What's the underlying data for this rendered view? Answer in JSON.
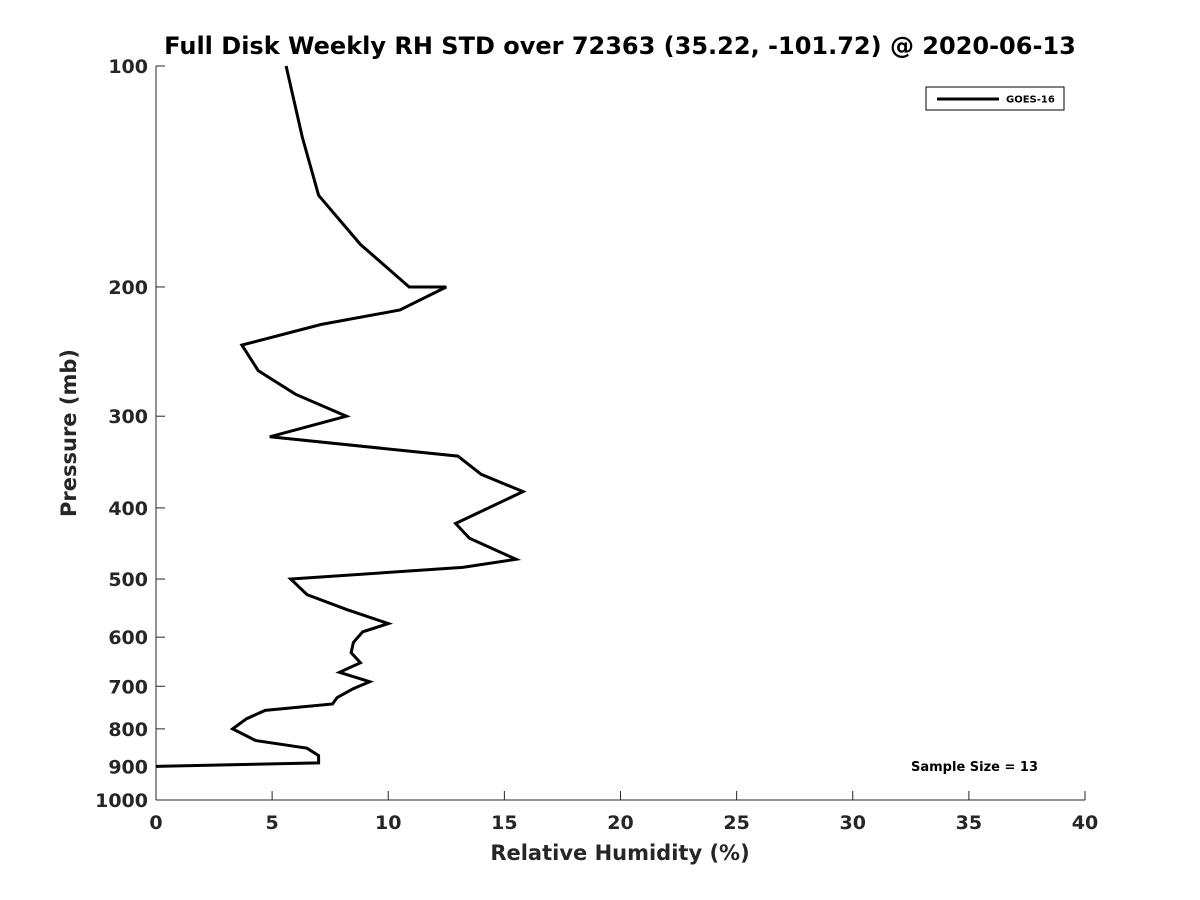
{
  "chart_data": {
    "type": "line",
    "title": "Full Disk Weekly RH STD over 72363 (35.22, -101.72) @ 2020-06-13",
    "xlabel": "Relative Humidity (%)",
    "ylabel": "Pressure (mb)",
    "xlim": [
      0,
      40
    ],
    "ylim": [
      100,
      1000
    ],
    "y_scale": "log",
    "y_reversed": true,
    "x_ticks": [
      0,
      5,
      10,
      15,
      20,
      25,
      30,
      35,
      40
    ],
    "y_ticks": [
      100,
      200,
      300,
      400,
      500,
      600,
      700,
      800,
      900,
      1000
    ],
    "grid": false,
    "legend_position": "top-right",
    "series": [
      {
        "name": "GOES-16",
        "color": "#000000",
        "points": [
          [
            5.6,
            100
          ],
          [
            6.3,
            125
          ],
          [
            7.0,
            150
          ],
          [
            8.8,
            175
          ],
          [
            10.9,
            200
          ],
          [
            12.5,
            200
          ],
          [
            10.5,
            215
          ],
          [
            7.1,
            225
          ],
          [
            3.7,
            240
          ],
          [
            4.4,
            260
          ],
          [
            6.0,
            280
          ],
          [
            8.2,
            300
          ],
          [
            4.9,
            320
          ],
          [
            13.0,
            340
          ],
          [
            14.0,
            360
          ],
          [
            15.8,
            380
          ],
          [
            12.9,
            420
          ],
          [
            13.5,
            440
          ],
          [
            15.5,
            470
          ],
          [
            13.2,
            482
          ],
          [
            5.8,
            500
          ],
          [
            6.5,
            525
          ],
          [
            8.2,
            550
          ],
          [
            10.0,
            575
          ],
          [
            8.9,
            590
          ],
          [
            8.5,
            610
          ],
          [
            8.4,
            630
          ],
          [
            8.8,
            650
          ],
          [
            7.9,
            670
          ],
          [
            9.2,
            690
          ],
          [
            8.5,
            705
          ],
          [
            7.8,
            725
          ],
          [
            7.6,
            740
          ],
          [
            4.7,
            755
          ],
          [
            3.9,
            775
          ],
          [
            3.3,
            800
          ],
          [
            4.3,
            830
          ],
          [
            6.5,
            850
          ],
          [
            7.0,
            870
          ],
          [
            7.0,
            890
          ],
          [
            0.0,
            900
          ]
        ]
      }
    ],
    "annotation": "Sample Size = 13"
  }
}
